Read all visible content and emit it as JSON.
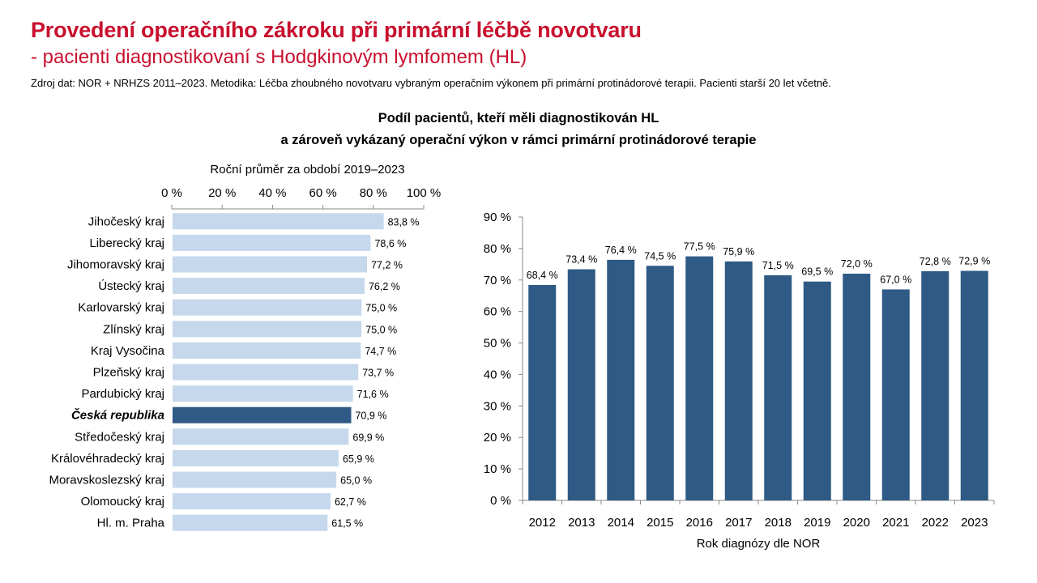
{
  "header": {
    "title": "Provedení operačního zákroku při primární léčbě novotvaru",
    "subtitle": "- pacienti diagnostikovaní s Hodgkinovým lymfomem (HL)",
    "source": "Zdroj dat: NOR + NRHZS 2011–2023. Metodika: Léčba zhoubného novotvaru vybraným operačním výkonem při primární protinádorové terapii. Pacienti starší 20 let včetně."
  },
  "chart_title": {
    "line1": "Podíl pacientů, kteří měli diagnostikován HL",
    "line2": "a zároveň vykázaný operační výkon v rámci primární protinádorové terapie"
  },
  "colors": {
    "title": "#c8102e",
    "bar_light": "#c5d8ec",
    "bar_dark": "#2e5a85"
  },
  "chart_data": [
    {
      "type": "bar",
      "orientation": "horizontal",
      "title": "Roční průměr za období 2019–2023",
      "categories": [
        "Jihočeský kraj",
        "Liberecký kraj",
        "Jihomoravský kraj",
        "Ústecký kraj",
        "Karlovarský kraj",
        "Zlínský kraj",
        "Kraj Vysočina",
        "Plzeňský kraj",
        "Pardubický kraj",
        "Česká republika",
        "Středočeský kraj",
        "Královéhradecký kraj",
        "Moravskoslezský kraj",
        "Olomoucký kraj",
        "Hl. m. Praha"
      ],
      "values": [
        83.8,
        78.6,
        77.2,
        76.2,
        75.0,
        75.0,
        74.7,
        73.7,
        71.6,
        70.9,
        69.9,
        65.9,
        65.0,
        62.7,
        61.5
      ],
      "data_labels": [
        "83,8 %",
        "78,6 %",
        "77,2 %",
        "76,2 %",
        "75,0 %",
        "75,0 %",
        "74,7 %",
        "73,7 %",
        "71,6 %",
        "70,9 %",
        "69,9 %",
        "65,9 %",
        "65,0 %",
        "62,7 %",
        "61,5 %"
      ],
      "highlight": "Česká republika",
      "xlim": [
        0,
        100
      ],
      "ticks": [
        0,
        20,
        40,
        60,
        80,
        100
      ],
      "tick_labels": [
        "0 %",
        "20 %",
        "40 %",
        "60 %",
        "80 %",
        "100 %"
      ],
      "axis_position": "top",
      "grid": false
    },
    {
      "type": "bar",
      "orientation": "vertical",
      "categories": [
        "2012",
        "2013",
        "2014",
        "2015",
        "2016",
        "2017",
        "2018",
        "2019",
        "2020",
        "2021",
        "2022",
        "2023"
      ],
      "values": [
        68.4,
        73.4,
        76.4,
        74.5,
        77.5,
        75.9,
        71.5,
        69.5,
        72.0,
        67.0,
        72.8,
        72.9
      ],
      "data_labels": [
        "68,4 %",
        "73,4 %",
        "76,4 %",
        "74,5 %",
        "77,5 %",
        "75,9 %",
        "71,5 %",
        "69,5 %",
        "72,0 %",
        "67,0 %",
        "72,8 %",
        "72,9 %"
      ],
      "xlabel": "Rok diagnózy dle NOR",
      "ylim": [
        0,
        90
      ],
      "ticks": [
        0,
        10,
        20,
        30,
        40,
        50,
        60,
        70,
        80,
        90
      ],
      "tick_labels": [
        "0 %",
        "10 %",
        "20 %",
        "30 %",
        "40 %",
        "50 %",
        "60 %",
        "70 %",
        "80 %",
        "90 %"
      ],
      "grid": false
    }
  ]
}
